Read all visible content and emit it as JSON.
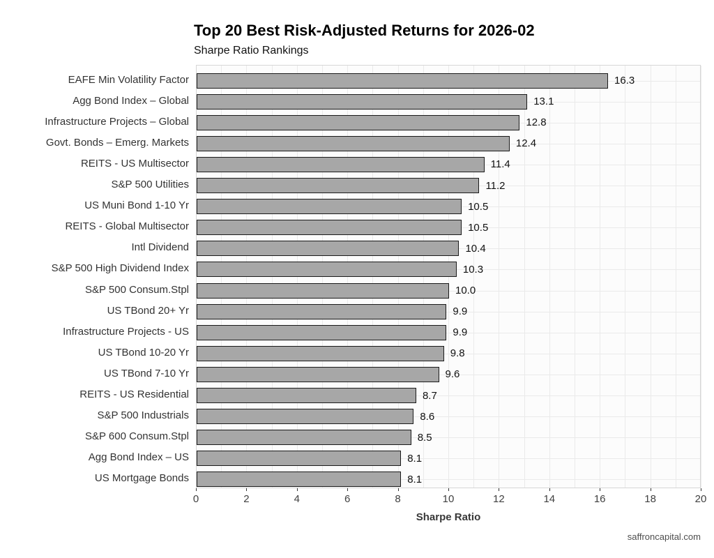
{
  "header": {
    "title": "Top 20 Best Risk-Adjusted Returns for 2026-02",
    "subtitle": "Sharpe Ratio Rankings"
  },
  "footer": {
    "source_label": "saffroncapital.com"
  },
  "chart_data": {
    "type": "bar",
    "orientation": "horizontal",
    "title": "Top 20 Best Risk-Adjusted Returns for 2026-02",
    "subtitle": "Sharpe Ratio Rankings",
    "xlabel": "Sharpe Ratio",
    "ylabel": "",
    "xlim": [
      0,
      20
    ],
    "xticks": [
      0,
      2,
      4,
      6,
      8,
      10,
      12,
      14,
      16,
      18,
      20
    ],
    "grid": true,
    "legend": false,
    "bar_fill_color": "#a7a7a7",
    "bar_border_color": "#1a1a1a",
    "gridline_color": "#eaeaea",
    "panel_border_color": "#d6d6d6",
    "categories": [
      "EAFE Min Volatility Factor",
      "Agg Bond Index – Global",
      "Infrastructure Projects – Global",
      "Govt. Bonds – Emerg. Markets",
      "REITS - US Multisector",
      "S&P 500 Utilities",
      "US Muni Bond 1-10 Yr",
      "REITS - Global Multisector",
      "Intl Dividend",
      "S&P 500 High Dividend Index",
      "S&P 500 Consum.Stpl",
      "US TBond 20+ Yr",
      "Infrastructure Projects - US",
      "US TBond 10-20 Yr",
      "US TBond 7-10 Yr",
      "REITS - US Residential",
      "S&P 500 Industrials",
      "S&P 600 Consum.Stpl",
      "Agg Bond Index – US",
      "US Mortgage Bonds"
    ],
    "values": [
      16.3,
      13.1,
      12.8,
      12.4,
      11.4,
      11.2,
      10.5,
      10.5,
      10.4,
      10.3,
      10.0,
      9.9,
      9.9,
      9.8,
      9.6,
      8.7,
      8.6,
      8.5,
      8.1,
      8.1
    ]
  }
}
